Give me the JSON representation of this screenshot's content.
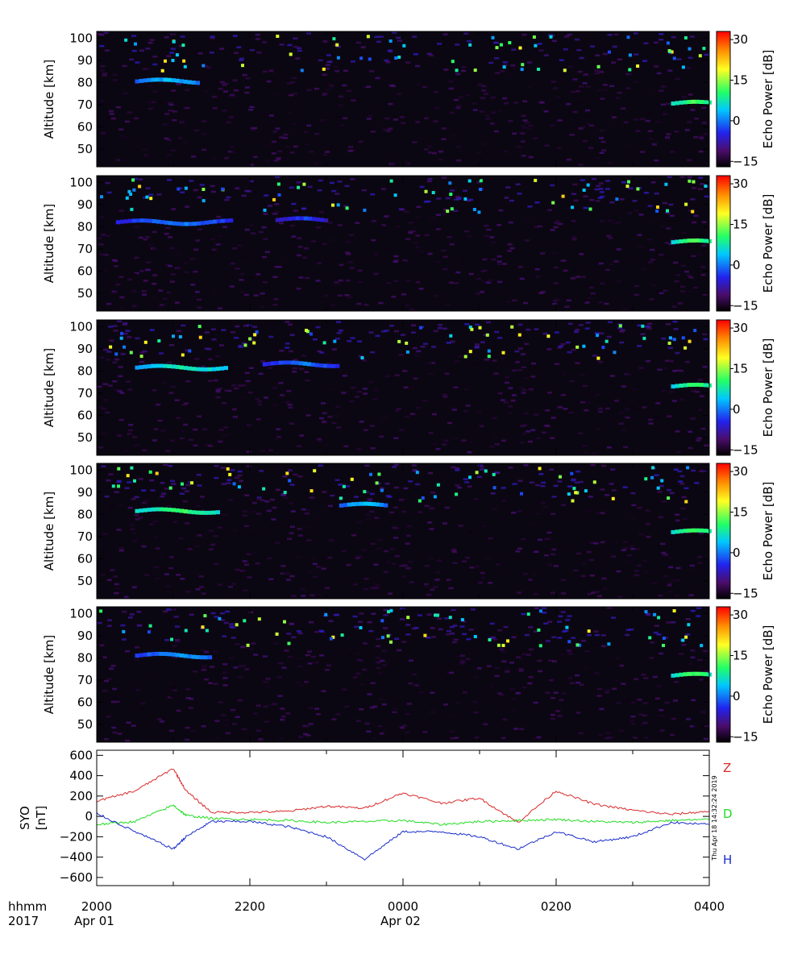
{
  "figure": {
    "x_ticks": [
      "2000",
      "2200",
      "0000",
      "0200",
      "0400"
    ],
    "date_labels": [
      "Apr 01",
      "Apr 02"
    ],
    "footer_left_top": "hhmm",
    "footer_left_bottom": "2017",
    "timestamp": "Thu Apr 18 14:32:24 2019"
  },
  "chart_data": [
    {
      "type": "heatmap",
      "panel": 1,
      "ylabel": "Altitude [km]",
      "yticks": [
        50,
        60,
        70,
        80,
        90,
        100
      ],
      "ylim": [
        42,
        103
      ],
      "colorbar_label": "Echo Power [dB]",
      "colorbar_ticks": [
        -15,
        0,
        15,
        30
      ],
      "zlim": [
        -17,
        33
      ],
      "layers": [
        {
          "start": "2030",
          "end": "2120",
          "alt": 80.5,
          "db": 2
        },
        {
          "start": "0330",
          "end": "0400",
          "alt": 70.5,
          "db": 10
        }
      ]
    },
    {
      "type": "heatmap",
      "panel": 2,
      "ylabel": "Altitude [km]",
      "yticks": [
        50,
        60,
        70,
        80,
        90,
        100
      ],
      "ylim": [
        42,
        103
      ],
      "colorbar_label": "Echo Power [dB]",
      "colorbar_ticks": [
        -15,
        0,
        15,
        30
      ],
      "zlim": [
        -17,
        33
      ],
      "layers": [
        {
          "start": "2015",
          "end": "2145",
          "alt": 82,
          "db": -2
        },
        {
          "start": "2220",
          "end": "2300",
          "alt": 83,
          "db": -5
        },
        {
          "start": "0330",
          "end": "0400",
          "alt": 73,
          "db": 10
        }
      ]
    },
    {
      "type": "heatmap",
      "panel": 3,
      "ylabel": "Altitude [km]",
      "yticks": [
        50,
        60,
        70,
        80,
        90,
        100
      ],
      "ylim": [
        42,
        103
      ],
      "colorbar_label": "Echo Power [dB]",
      "colorbar_ticks": [
        -15,
        0,
        15,
        30
      ],
      "zlim": [
        -17,
        33
      ],
      "layers": [
        {
          "start": "2030",
          "end": "2140",
          "alt": 81.5,
          "db": 6
        },
        {
          "start": "2210",
          "end": "2310",
          "alt": 83,
          "db": -2
        },
        {
          "start": "0330",
          "end": "0400",
          "alt": 73,
          "db": 9
        }
      ]
    },
    {
      "type": "heatmap",
      "panel": 4,
      "ylabel": "Altitude [km]",
      "yticks": [
        50,
        60,
        70,
        80,
        90,
        100
      ],
      "ylim": [
        42,
        103
      ],
      "colorbar_label": "Echo Power [dB]",
      "colorbar_ticks": [
        -15,
        0,
        15,
        30
      ],
      "zlim": [
        -17,
        33
      ],
      "layers": [
        {
          "start": "2030",
          "end": "2135",
          "alt": 81.5,
          "db": 9
        },
        {
          "start": "2310",
          "end": "2345",
          "alt": 84,
          "db": 2
        },
        {
          "start": "0330",
          "end": "0400",
          "alt": 72,
          "db": 10
        }
      ]
    },
    {
      "type": "heatmap",
      "panel": 5,
      "ylabel": "Altitude [km]",
      "yticks": [
        50,
        60,
        70,
        80,
        90,
        100
      ],
      "ylim": [
        42,
        103
      ],
      "colorbar_label": "Echo Power [dB]",
      "colorbar_ticks": [
        -15,
        0,
        15,
        30
      ],
      "zlim": [
        -17,
        33
      ],
      "layers": [
        {
          "start": "2030",
          "end": "2130",
          "alt": 81,
          "db": 0
        },
        {
          "start": "0330",
          "end": "0400",
          "alt": 72,
          "db": 10
        }
      ]
    },
    {
      "type": "line",
      "ylabel_top": "SYO",
      "ylabel_bottom": "[nT]",
      "yticks": [
        -600,
        -400,
        -200,
        0,
        200,
        400,
        600
      ],
      "ylim": [
        -680,
        650
      ],
      "x": [
        "2000",
        "2030",
        "2100",
        "2110",
        "2130",
        "2200",
        "2230",
        "2300",
        "2330",
        "0000",
        "0030",
        "0100",
        "0130",
        "0200",
        "0230",
        "0300",
        "0330",
        "0400"
      ],
      "series": [
        {
          "name": "Z",
          "color": "#d92a2a",
          "values": [
            150,
            250,
            470,
            250,
            40,
            40,
            50,
            100,
            80,
            230,
            130,
            180,
            -60,
            250,
            120,
            60,
            20,
            50
          ]
        },
        {
          "name": "D",
          "color": "#22dd22",
          "values": [
            -80,
            -50,
            110,
            10,
            -20,
            -30,
            -40,
            -60,
            -50,
            -40,
            -80,
            -50,
            -40,
            -30,
            -50,
            -60,
            -40,
            -30
          ]
        },
        {
          "name": "H",
          "color": "#1a2ccc",
          "values": [
            30,
            -150,
            -320,
            -200,
            -50,
            -50,
            -100,
            -200,
            -420,
            -150,
            -150,
            -200,
            -320,
            -150,
            -250,
            -200,
            -60,
            -80
          ]
        }
      ]
    }
  ]
}
